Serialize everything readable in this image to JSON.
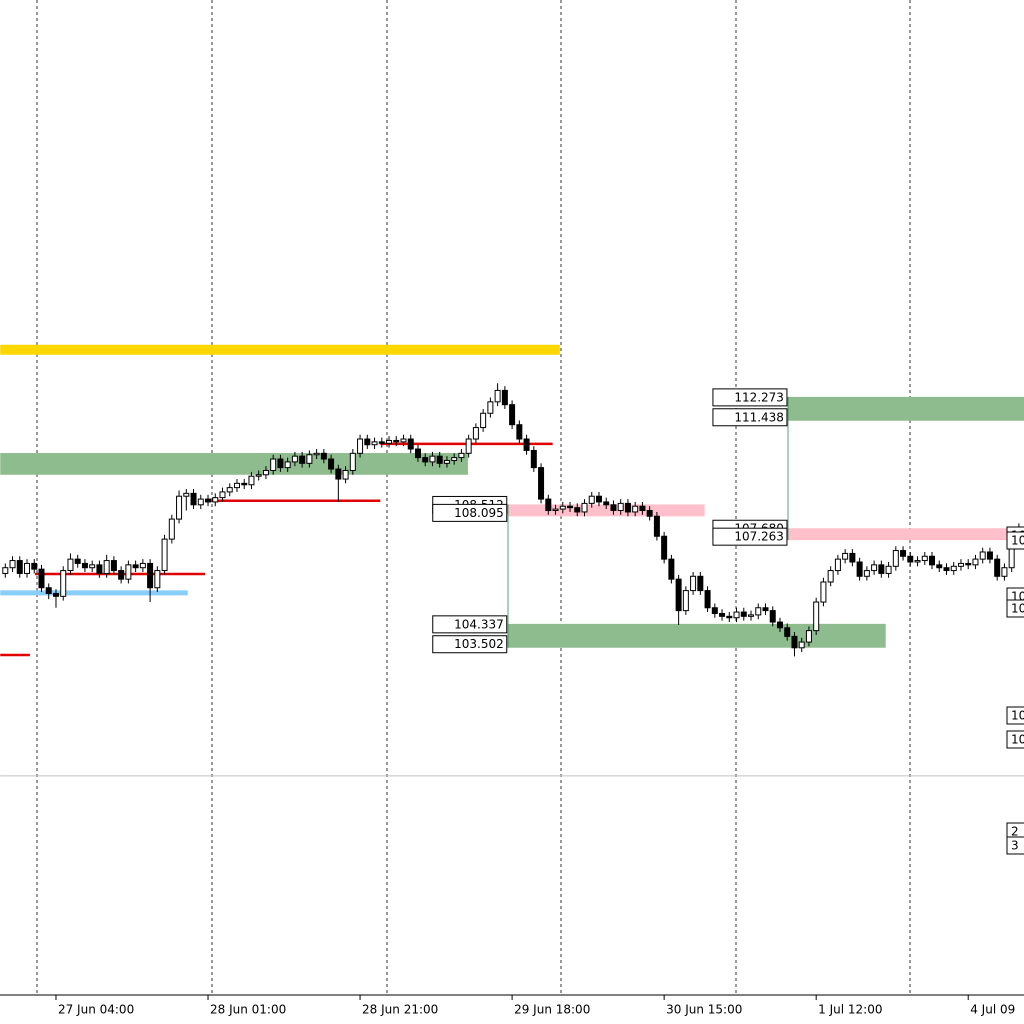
{
  "chart_data": {
    "type": "candlestick",
    "categories": [
      null,
      null,
      null,
      null,
      null,
      null,
      null,
      "27 Jun 04:00",
      null,
      null,
      null,
      null,
      null,
      null,
      null,
      null,
      null,
      null,
      null,
      null,
      null,
      null,
      null,
      null,
      null,
      null,
      null,
      null,
      "28 Jun 01:00",
      null,
      null,
      null,
      null,
      null,
      null,
      null,
      null,
      null,
      null,
      null,
      null,
      null,
      null,
      null,
      null,
      null,
      null,
      null,
      null,
      "28 Jun 21:00",
      null,
      null,
      null,
      null,
      null,
      null,
      null,
      null,
      null,
      null,
      null,
      null,
      null,
      null,
      null,
      null,
      null,
      null,
      null,
      null,
      "29 Jun 18:00",
      null,
      null,
      null,
      null,
      null,
      null,
      null,
      null,
      null,
      null,
      null,
      null,
      null,
      null,
      null,
      null,
      null,
      null,
      null,
      null,
      "30 Jun 15:00",
      null,
      null,
      null,
      null,
      null,
      null,
      null,
      null,
      null,
      null,
      null,
      null,
      null,
      null,
      null,
      null,
      null,
      null,
      null,
      null,
      "1 Jul 12:00",
      null,
      null,
      null,
      null,
      null,
      null,
      null,
      null,
      null,
      null,
      null,
      null,
      null,
      null,
      null,
      null,
      null,
      null,
      null,
      null,
      "4 Jul 09",
      null,
      null,
      null,
      null,
      null,
      null,
      null
    ],
    "candles": [
      [
        106.1,
        106.45,
        105.95,
        106.3
      ],
      [
        106.3,
        106.7,
        106.15,
        106.55
      ],
      [
        106.55,
        106.7,
        105.95,
        106.1
      ],
      [
        106.1,
        106.6,
        105.95,
        106.45
      ],
      [
        106.45,
        106.6,
        106.1,
        106.25
      ],
      [
        106.25,
        106.4,
        105.45,
        105.6
      ],
      [
        105.6,
        105.75,
        105.2,
        105.4
      ],
      [
        105.4,
        105.55,
        104.9,
        105.3
      ],
      [
        105.3,
        106.35,
        105.15,
        106.2
      ],
      [
        106.2,
        106.8,
        106.05,
        106.6
      ],
      [
        106.6,
        106.75,
        106.3,
        106.45
      ],
      [
        106.45,
        106.6,
        106.15,
        106.3
      ],
      [
        106.3,
        106.55,
        106.15,
        106.4
      ],
      [
        106.4,
        106.55,
        105.95,
        106.1
      ],
      [
        106.1,
        106.75,
        105.95,
        106.55
      ],
      [
        106.55,
        106.7,
        106.05,
        106.2
      ],
      [
        106.2,
        106.35,
        105.75,
        105.9
      ],
      [
        105.9,
        106.55,
        105.75,
        106.4
      ],
      [
        106.4,
        106.55,
        106.15,
        106.3
      ],
      [
        106.3,
        106.6,
        106.15,
        106.45
      ],
      [
        106.45,
        106.6,
        105.1,
        105.6
      ],
      [
        105.6,
        106.35,
        105.45,
        106.2
      ],
      [
        106.2,
        107.45,
        106.05,
        107.3
      ],
      [
        107.3,
        108.15,
        107.15,
        108.0
      ],
      [
        108.0,
        109.0,
        107.85,
        108.8
      ],
      [
        108.8,
        109.05,
        108.3,
        108.9
      ],
      [
        108.9,
        109.05,
        108.35,
        108.5
      ],
      [
        108.5,
        108.85,
        108.35,
        108.7
      ],
      [
        108.7,
        108.85,
        108.45,
        108.6
      ],
      [
        108.6,
        108.9,
        108.45,
        108.75
      ],
      [
        108.75,
        109.1,
        108.6,
        108.95
      ],
      [
        108.95,
        109.25,
        108.8,
        109.1
      ],
      [
        109.1,
        109.4,
        108.95,
        109.25
      ],
      [
        109.25,
        109.4,
        109.05,
        109.2
      ],
      [
        109.2,
        109.65,
        109.05,
        109.5
      ],
      [
        109.5,
        109.7,
        109.35,
        109.55
      ],
      [
        109.55,
        109.85,
        109.4,
        109.7
      ],
      [
        109.7,
        110.25,
        109.55,
        110.1
      ],
      [
        110.1,
        110.25,
        109.65,
        109.8
      ],
      [
        109.8,
        110.15,
        109.65,
        110.0
      ],
      [
        110.0,
        110.35,
        109.85,
        110.2
      ],
      [
        110.2,
        110.35,
        109.8,
        109.95
      ],
      [
        109.95,
        110.4,
        109.8,
        110.25
      ],
      [
        110.25,
        110.45,
        110.1,
        110.3
      ],
      [
        110.3,
        110.45,
        109.95,
        110.1
      ],
      [
        110.1,
        110.25,
        109.6,
        109.75
      ],
      [
        109.75,
        109.9,
        108.6,
        109.4
      ],
      [
        109.4,
        109.85,
        109.25,
        109.7
      ],
      [
        109.7,
        110.45,
        109.55,
        110.3
      ],
      [
        110.3,
        110.95,
        110.15,
        110.8
      ],
      [
        110.8,
        110.95,
        110.45,
        110.6
      ],
      [
        110.6,
        110.85,
        110.45,
        110.7
      ],
      [
        110.7,
        110.85,
        110.5,
        110.65
      ],
      [
        110.65,
        110.9,
        110.5,
        110.75
      ],
      [
        110.75,
        110.9,
        110.55,
        110.7
      ],
      [
        110.7,
        110.95,
        110.55,
        110.8
      ],
      [
        110.8,
        110.95,
        110.3,
        110.45
      ],
      [
        110.45,
        110.6,
        110.0,
        110.15
      ],
      [
        110.15,
        110.3,
        109.85,
        110.0
      ],
      [
        110.0,
        110.35,
        109.85,
        110.2
      ],
      [
        110.2,
        110.35,
        109.8,
        109.95
      ],
      [
        109.95,
        110.2,
        109.8,
        110.05
      ],
      [
        110.05,
        110.3,
        109.9,
        110.15
      ],
      [
        110.15,
        110.45,
        110.0,
        110.3
      ],
      [
        110.3,
        110.95,
        110.15,
        110.8
      ],
      [
        110.8,
        111.35,
        110.65,
        111.2
      ],
      [
        111.2,
        111.85,
        111.05,
        111.7
      ],
      [
        111.7,
        112.25,
        111.55,
        112.1
      ],
      [
        112.1,
        112.75,
        111.95,
        112.5
      ],
      [
        112.5,
        112.65,
        111.85,
        112.0
      ],
      [
        112.0,
        112.15,
        111.15,
        111.3
      ],
      [
        111.3,
        111.45,
        110.65,
        110.8
      ],
      [
        110.8,
        110.95,
        110.25,
        110.4
      ],
      [
        110.4,
        110.55,
        109.65,
        109.8
      ],
      [
        109.8,
        109.95,
        108.55,
        108.7
      ],
      [
        108.7,
        108.85,
        108.15,
        108.3
      ],
      [
        108.3,
        108.5,
        108.15,
        108.35
      ],
      [
        108.35,
        108.6,
        108.2,
        108.45
      ],
      [
        108.45,
        108.6,
        108.25,
        108.4
      ],
      [
        108.4,
        108.55,
        108.1,
        108.25
      ],
      [
        108.25,
        108.7,
        108.1,
        108.55
      ],
      [
        108.55,
        108.95,
        108.4,
        108.8
      ],
      [
        108.8,
        108.95,
        108.45,
        108.6
      ],
      [
        108.6,
        108.75,
        108.35,
        108.5
      ],
      [
        108.5,
        108.65,
        108.15,
        108.3
      ],
      [
        108.3,
        108.7,
        108.15,
        108.55
      ],
      [
        108.55,
        108.7,
        108.1,
        108.25
      ],
      [
        108.25,
        108.6,
        108.1,
        108.45
      ],
      [
        108.45,
        108.6,
        108.15,
        108.3
      ],
      [
        108.3,
        108.45,
        107.95,
        108.1
      ],
      [
        108.1,
        108.25,
        107.25,
        107.4
      ],
      [
        107.4,
        107.55,
        106.45,
        106.6
      ],
      [
        106.6,
        106.75,
        105.75,
        105.9
      ],
      [
        105.9,
        106.05,
        104.3,
        104.8
      ],
      [
        104.8,
        105.65,
        104.65,
        105.5
      ],
      [
        105.5,
        106.15,
        105.35,
        106.0
      ],
      [
        106.0,
        106.15,
        105.35,
        105.5
      ],
      [
        105.5,
        105.65,
        104.75,
        104.9
      ],
      [
        104.9,
        105.05,
        104.55,
        104.7
      ],
      [
        104.7,
        104.85,
        104.45,
        104.6
      ],
      [
        104.6,
        104.75,
        104.4,
        104.55
      ],
      [
        104.55,
        104.9,
        104.4,
        104.75
      ],
      [
        104.75,
        104.9,
        104.45,
        104.6
      ],
      [
        104.6,
        104.8,
        104.45,
        104.65
      ],
      [
        104.65,
        105.05,
        104.5,
        104.9
      ],
      [
        104.9,
        105.05,
        104.65,
        104.8
      ],
      [
        104.8,
        104.95,
        104.25,
        104.4
      ],
      [
        104.4,
        104.55,
        104.05,
        104.2
      ],
      [
        104.2,
        104.35,
        103.75,
        103.9
      ],
      [
        103.9,
        104.05,
        103.2,
        103.5
      ],
      [
        103.5,
        103.85,
        103.35,
        103.7
      ],
      [
        103.7,
        104.25,
        103.55,
        104.1
      ],
      [
        104.1,
        105.25,
        103.95,
        105.1
      ],
      [
        105.1,
        105.95,
        104.95,
        105.8
      ],
      [
        105.8,
        106.35,
        105.65,
        106.2
      ],
      [
        106.2,
        106.75,
        106.05,
        106.6
      ],
      [
        106.6,
        106.95,
        106.45,
        106.8
      ],
      [
        106.8,
        106.95,
        106.35,
        106.5
      ],
      [
        106.5,
        106.65,
        105.85,
        106.0
      ],
      [
        106.0,
        106.35,
        105.85,
        106.2
      ],
      [
        106.2,
        106.55,
        106.05,
        106.4
      ],
      [
        106.4,
        106.55,
        105.95,
        106.1
      ],
      [
        106.1,
        106.5,
        105.95,
        106.35
      ],
      [
        106.35,
        107.05,
        106.2,
        106.9
      ],
      [
        106.9,
        107.05,
        106.55,
        106.7
      ],
      [
        106.7,
        106.85,
        106.35,
        106.5
      ],
      [
        106.5,
        106.7,
        106.35,
        106.55
      ],
      [
        106.55,
        106.85,
        106.4,
        106.7
      ],
      [
        106.7,
        106.85,
        106.25,
        106.4
      ],
      [
        106.4,
        106.55,
        106.15,
        106.3
      ],
      [
        106.3,
        106.45,
        106.05,
        106.2
      ],
      [
        106.2,
        106.5,
        106.05,
        106.35
      ],
      [
        106.35,
        106.6,
        106.2,
        106.45
      ],
      [
        106.45,
        106.6,
        106.25,
        106.4
      ],
      [
        106.4,
        106.75,
        106.25,
        106.6
      ],
      [
        106.6,
        107.0,
        106.45,
        106.85
      ],
      [
        106.85,
        107.0,
        106.45,
        106.6
      ],
      [
        106.6,
        106.75,
        105.85,
        106.0
      ],
      [
        106.0,
        106.45,
        105.85,
        106.3
      ],
      [
        106.3,
        107.25,
        106.15,
        107.1
      ],
      [
        107.1,
        107.85,
        106.95,
        107.7
      ]
    ],
    "ylim": [
      91.36,
      126.15
    ],
    "zones": [
      {
        "high": 110.31,
        "low": 109.55,
        "from": -0.7,
        "to": 63.9,
        "color": "#8fbc8f",
        "labeled": false
      },
      {
        "high": 108.512,
        "low": 108.095,
        "from": 69.4,
        "to": 96.6,
        "color": "#ffc0cb",
        "labeled": true
      },
      {
        "high": 104.337,
        "low": 103.502,
        "from": 69.4,
        "to": 121.6,
        "color": "#8fbc8f",
        "labeled": true
      },
      {
        "high": 112.273,
        "low": 111.438,
        "from": 108.1,
        "to": 141,
        "color": "#8fbc8f",
        "labeled": true
      },
      {
        "high": {
          "value": 107.68,
          "label": "107.680"
        },
        "low": 107.263,
        "from": 108.1,
        "to": 141,
        "color": "#ffc0cb",
        "labeled": true
      }
    ],
    "levels": [
      {
        "price": 113.92,
        "from": -0.7,
        "to": 76.6,
        "color": "#ffd700"
      },
      {
        "price": 110.63,
        "from": 51.8,
        "to": 75.6,
        "color": "#e00000"
      },
      {
        "price": 108.64,
        "from": 27.6,
        "to": 51.8,
        "color": "#e00000"
      },
      {
        "price": 106.08,
        "from": 4.1,
        "to": 27.6,
        "color": "#e00000"
      },
      {
        "price": 103.25,
        "from": -0.7,
        "to": 3.4,
        "color": "#e00000"
      },
      {
        "price": 105.42,
        "from": -0.7,
        "to": 25.2,
        "color": "#87cefa"
      },
      {
        "price": 99.02,
        "from": -0.7,
        "to": 141,
        "color": "#c0c0c0"
      }
    ],
    "edge_labels": [
      "10",
      "10",
      "10",
      "10",
      "10",
      "10",
      "2",
      "3"
    ]
  }
}
